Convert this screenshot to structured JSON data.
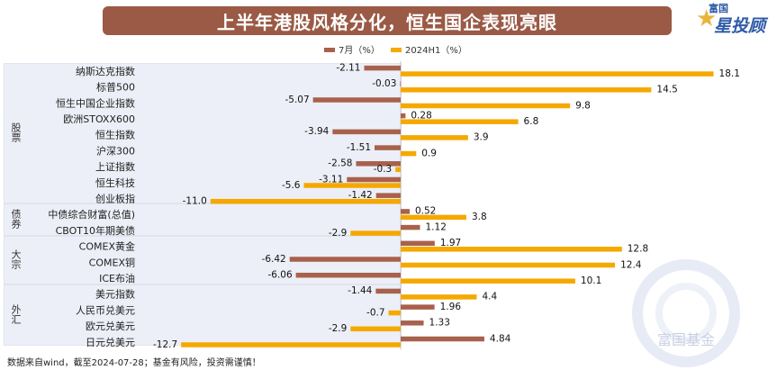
{
  "title": "上半年港股风格分化，恒生国企表现亮眼",
  "logo": {
    "small": "富国",
    "big": "星投顾"
  },
  "watermark": "富国基金",
  "footer": "数据来自wind，截至2024-07-28；基金有风险，投资需谨慎！",
  "groups": [
    "股票",
    "债券",
    "大宗",
    "外汇"
  ],
  "chart_data": {
    "type": "bar",
    "orientation": "horizontal",
    "title": "上半年港股风格分化，恒生国企表现亮眼",
    "legend_position": "top",
    "categories": [
      "纳斯达克指数",
      "标普500",
      "恒生中国企业指数",
      "欧洲STOXX600",
      "恒生指数",
      "沪深300",
      "上证指数",
      "恒生科技",
      "创业板指",
      "中债综合财富(总值)",
      "CBOT10年期美债",
      "COMEX黄金",
      "COMEX铜",
      "ICE布油",
      "美元指数",
      "人民币兑美元",
      "欧元兑美元",
      "日元兑美元"
    ],
    "category_groups": [
      "股票",
      "股票",
      "股票",
      "股票",
      "股票",
      "股票",
      "股票",
      "股票",
      "股票",
      "债券",
      "债券",
      "大宗",
      "大宗",
      "大宗",
      "外汇",
      "外汇",
      "外汇",
      "外汇"
    ],
    "series": [
      {
        "name": "7月（%）",
        "color": "#a8614c",
        "values": [
          -2.11,
          -0.03,
          -5.07,
          0.28,
          -3.94,
          -1.51,
          -2.58,
          -3.11,
          -1.42,
          0.52,
          1.12,
          1.97,
          -6.42,
          -6.06,
          -1.44,
          1.96,
          1.33,
          4.84
        ]
      },
      {
        "name": "2024H1（%）",
        "color": "#f5a800",
        "values": [
          18.1,
          14.5,
          9.8,
          6.8,
          3.9,
          0.9,
          -0.3,
          -5.6,
          -11.0,
          3.8,
          -2.9,
          12.8,
          12.4,
          10.1,
          4.4,
          -0.7,
          -2.9,
          -12.7
        ]
      }
    ],
    "value_labels": {
      "7月（%）": [
        "-2.11",
        "-0.03",
        "-5.07",
        "0.28",
        "-3.94",
        "-1.51",
        "-2.58",
        "-3.11",
        "-1.42",
        "0.52",
        "1.12",
        "1.97",
        "-6.42",
        "-6.06",
        "-1.44",
        "1.96",
        "1.33",
        "4.84"
      ],
      "2024H1（%）": [
        "18.1",
        "14.5",
        "9.8",
        "6.8",
        "3.9",
        "0.9",
        "-0.3",
        "-5.6",
        "-11.0",
        "3.8",
        "-2.9",
        "12.8",
        "12.4",
        "10.1",
        "4.4",
        "-0.7",
        "-2.9",
        "-12.7"
      ]
    },
    "xlim": [
      -14,
      19
    ],
    "grid": false
  }
}
